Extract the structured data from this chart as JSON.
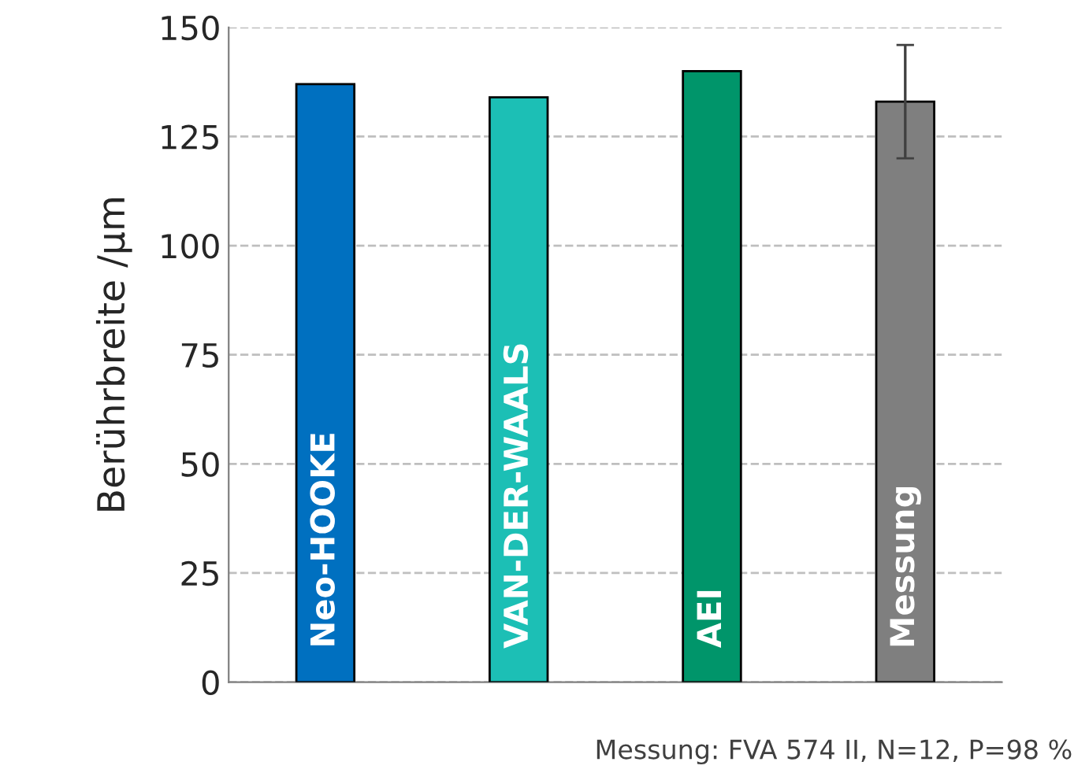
{
  "chart_data": {
    "type": "bar",
    "ylabel": "Berührbreite /µm",
    "categories": [
      "Neo-HOOKE",
      "VAN-DER-WAALS",
      "AEI",
      "Messung"
    ],
    "values": [
      137,
      134,
      140,
      133
    ],
    "colors": [
      "#0070c0",
      "#1cbfb5",
      "#00956a",
      "#7f7f7f"
    ],
    "errors": [
      null,
      null,
      null,
      13
    ],
    "ylim": [
      0,
      150
    ],
    "yticks": [
      0,
      25,
      50,
      75,
      100,
      125,
      150
    ],
    "grid": "y",
    "line_style": "dashed",
    "annotations": [
      "Messung: FVA 574 II, N=12, P=98 %"
    ]
  }
}
